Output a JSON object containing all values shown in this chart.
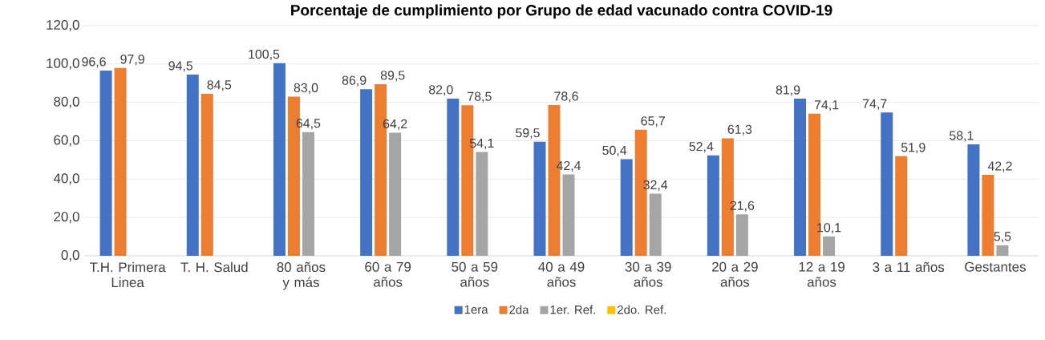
{
  "chart_data": {
    "type": "bar",
    "title": "Porcentaje de cumplimiento por Grupo de edad vacunado contra COVID-19",
    "categories": [
      "T.H. Primera Linea",
      "T. H. Salud",
      "80 años y más",
      "60 a 79 años",
      "50 a 59 años",
      "40 a 49 años",
      "30 a 39 años",
      "20 a 29 años",
      "12 a 19 años",
      "3 a 11 años",
      "Gestantes"
    ],
    "series": [
      {
        "name": "1era",
        "color": "#4472c4",
        "values": [
          96.6,
          94.5,
          100.5,
          86.9,
          82.0,
          59.5,
          50.4,
          52.4,
          81.9,
          74.7,
          58.1
        ],
        "value_labels": [
          "96,6",
          "94,5",
          "100,5",
          "86,9",
          "82,0",
          "59,5",
          "50,4",
          "52,4",
          "81,9",
          "74,7",
          "58,1"
        ]
      },
      {
        "name": "2da",
        "color": "#ed7d31",
        "values": [
          97.9,
          84.5,
          83.0,
          89.5,
          78.5,
          78.6,
          65.7,
          61.3,
          74.1,
          51.9,
          42.2
        ],
        "value_labels": [
          "97,9",
          "84,5",
          "83,0",
          "89,5",
          "78,5",
          "78,6",
          "65,7",
          "61,3",
          "74,1",
          "51,9",
          "42,2"
        ]
      },
      {
        "name": "1er. Ref.",
        "color": "#a5a5a5",
        "values": [
          null,
          null,
          64.5,
          64.2,
          54.1,
          42.4,
          32.4,
          21.6,
          10.1,
          null,
          5.5
        ],
        "value_labels": [
          null,
          null,
          "64,5",
          "64,2",
          "54,1",
          "42,4",
          "32,4",
          "21,6",
          "10,1",
          null,
          "5,5"
        ]
      },
      {
        "name": "2do. Ref.",
        "color": "#ffc000",
        "values": [
          null,
          null,
          null,
          null,
          null,
          null,
          null,
          null,
          null,
          null,
          null
        ]
      }
    ],
    "ylim": [
      0,
      120
    ],
    "yticks": [
      {
        "value": 0,
        "label": "0,0"
      },
      {
        "value": 20,
        "label": "20,0"
      },
      {
        "value": 40,
        "label": "40,0"
      },
      {
        "value": 60,
        "label": "60,0"
      },
      {
        "value": 80,
        "label": "80,0"
      },
      {
        "value": 100,
        "label": "100,0"
      },
      {
        "value": 120,
        "label": "120,0"
      }
    ],
    "grid": "y",
    "legend": "bottom"
  }
}
